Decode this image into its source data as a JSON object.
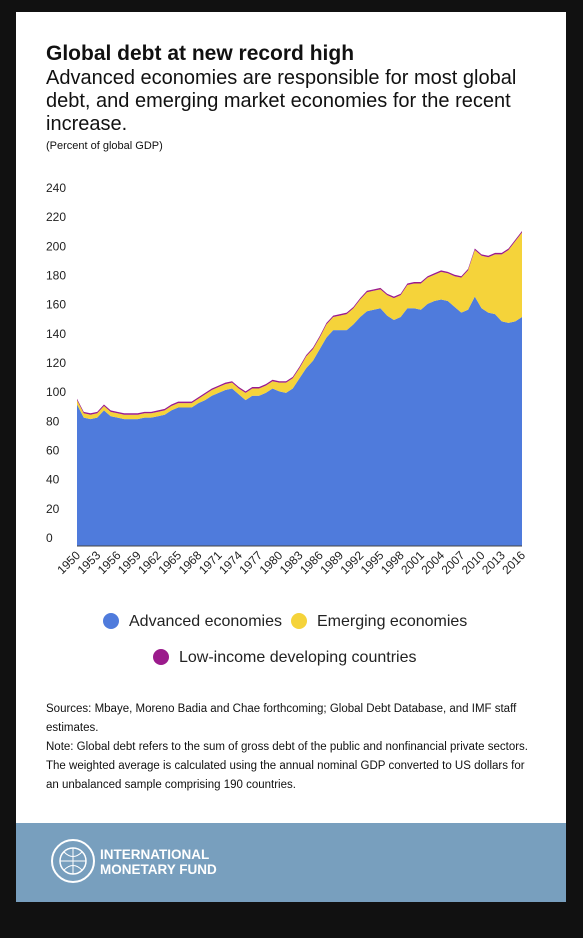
{
  "chart_data": {
    "type": "stacked-area",
    "title": "Global debt at new record high",
    "subtitle": "Advanced economies are responsible for most global debt, and emerging market economies for the recent increase.",
    "y_label": "(Percent of global GDP)",
    "x": [
      1950,
      1951,
      1952,
      1953,
      1954,
      1955,
      1956,
      1957,
      1958,
      1959,
      1960,
      1961,
      1962,
      1963,
      1964,
      1965,
      1966,
      1967,
      1968,
      1969,
      1970,
      1971,
      1972,
      1973,
      1974,
      1975,
      1976,
      1977,
      1978,
      1979,
      1980,
      1981,
      1982,
      1983,
      1984,
      1985,
      1986,
      1987,
      1988,
      1989,
      1990,
      1991,
      1992,
      1993,
      1994,
      1995,
      1996,
      1997,
      1998,
      1999,
      2000,
      2001,
      2002,
      2003,
      2004,
      2005,
      2006,
      2007,
      2008,
      2009,
      2010,
      2011,
      2012,
      2013,
      2014,
      2015,
      2016
    ],
    "xlim": [
      1950,
      2016
    ],
    "xticks": [
      1950,
      1953,
      1956,
      1959,
      1962,
      1965,
      1968,
      1971,
      1974,
      1977,
      1980,
      1983,
      1986,
      1989,
      1992,
      1995,
      1998,
      2001,
      2004,
      2007,
      2010,
      2013,
      2016
    ],
    "ylim": [
      0,
      240
    ],
    "yticks": [
      0,
      20,
      40,
      60,
      80,
      100,
      120,
      140,
      160,
      180,
      200,
      220,
      240
    ],
    "series": [
      {
        "name": "Advanced economies",
        "color": "#4f7bdc",
        "values": [
          97,
          88,
          87,
          88,
          93,
          89,
          88,
          87,
          87,
          87,
          88,
          88,
          89,
          90,
          93,
          95,
          95,
          95,
          98,
          100,
          103,
          105,
          107,
          108,
          104,
          100,
          103,
          103,
          105,
          108,
          106,
          105,
          108,
          115,
          122,
          127,
          135,
          143,
          148,
          148,
          148,
          152,
          157,
          161,
          162,
          163,
          158,
          155,
          157,
          163,
          163,
          162,
          166,
          168,
          169,
          168,
          164,
          160,
          162,
          171,
          163,
          160,
          159,
          154,
          153,
          154,
          157
        ]
      },
      {
        "name": "Emerging economies",
        "color": "#f5d33a",
        "values": [
          3,
          3,
          3,
          3,
          3,
          3,
          3,
          3,
          3,
          3,
          3,
          3,
          3,
          3,
          3,
          3,
          3,
          3,
          3,
          4,
          4,
          4,
          4,
          4,
          4,
          5,
          5,
          5,
          5,
          5,
          6,
          7,
          7,
          7,
          8,
          8,
          8,
          9,
          9,
          10,
          11,
          11,
          12,
          13,
          13,
          13,
          14,
          15,
          15,
          16,
          17,
          18,
          18,
          18,
          19,
          19,
          21,
          24,
          27,
          32,
          36,
          38,
          41,
          46,
          50,
          55,
          58
        ]
      },
      {
        "name": "Low-income developing countries",
        "color": "#9b1b8c",
        "values": [
          1,
          1,
          1,
          1,
          1,
          1,
          1,
          1,
          1,
          1,
          1,
          1,
          1,
          1,
          1,
          1,
          1,
          1,
          1,
          1,
          1,
          1,
          1,
          1,
          1,
          1,
          1,
          1,
          1,
          1,
          1,
          1,
          1,
          1,
          1,
          1,
          1,
          1,
          1,
          1,
          1,
          1,
          1,
          1,
          1,
          1,
          1,
          1,
          1,
          1,
          1,
          1,
          1,
          1,
          1,
          1,
          1,
          1,
          1,
          1,
          1,
          1,
          1,
          1,
          1,
          1,
          1
        ]
      }
    ]
  },
  "sources": "Sources: Mbaye, Moreno Badia and Chae forthcoming; Global Debt Database, and IMF staff estimates.",
  "note": "Note: Global debt refers to the sum of gross debt of the public and nonfinancial private sectors. The weighted average is calculated using the annual nominal GDP converted to US dollars for an unbalanced sample comprising 190 countries.",
  "footer": {
    "line1": "INTERNATIONAL",
    "line2": "MONETARY FUND"
  }
}
